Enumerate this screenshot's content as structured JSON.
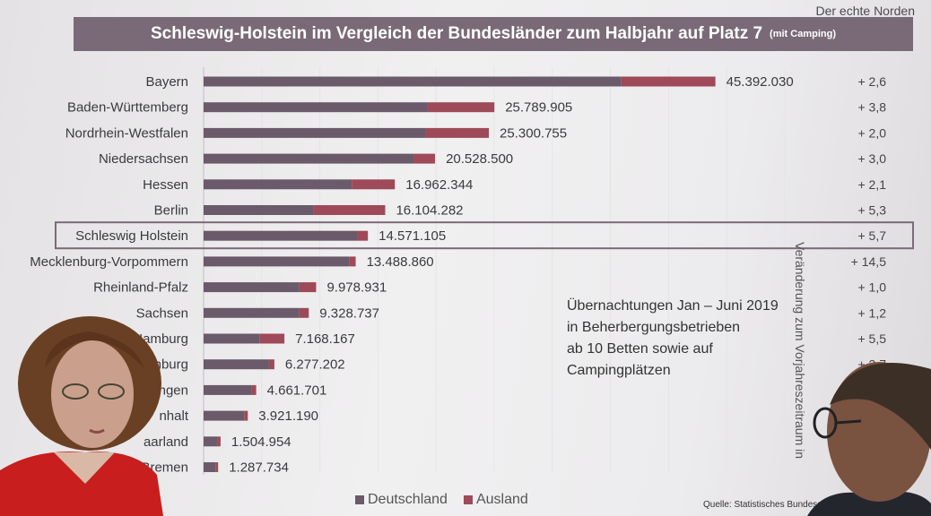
{
  "header": {
    "brand": "Der echte Norden",
    "title": "Schleswig-Holstein im Vergleich der Bundesländer zum Halbjahr auf Platz 7",
    "title_sub": "(mit Camping)"
  },
  "note": "Übernachtungen Jan – Juni 2019\nin Beherbergungsbetrieben\nab 10 Betten sowie auf\nCampingplätzen",
  "legend": [
    "Deutschland",
    "Ausland"
  ],
  "source": "Quelle: Statistisches Bundesam",
  "change_axis_label": "Veränderung zum Vorjahreszeitraum in",
  "colors": {
    "deutschland": "#6b5a6a",
    "ausland": "#9e4a58",
    "title_bg": "#7a6a78"
  },
  "highlight_index": 6,
  "chart_data": {
    "type": "bar",
    "orientation": "horizontal",
    "stacked": true,
    "categories": [
      "Bayern",
      "Baden-Württemberg",
      "Nordrhein-Westfalen",
      "Niedersachsen",
      "Hessen",
      "Berlin",
      "Schleswig Holstein",
      "Mecklenburg-Vorpommern",
      "Rheinland-Pfalz",
      "Sachsen",
      "Hamburg",
      "enburg",
      "ngen",
      "nhalt",
      "aarland",
      "Bremen"
    ],
    "totals": [
      "45.392.030",
      "25.789.905",
      "25.300.755",
      "20.528.500",
      "16.962.344",
      "16.104.282",
      "14.571.105",
      "13.488.860",
      "9.978.931",
      "9.328.737",
      "7.168.167",
      "6.277.202",
      "4.661.701",
      "3.921.190",
      "1.504.954",
      "1.287.734"
    ],
    "series": [
      {
        "name": "Deutschland",
        "values": [
          37050000,
          19850000,
          19650000,
          18650000,
          13150000,
          9750000,
          13640000,
          12950000,
          8500000,
          8500000,
          4950000,
          5800000,
          4250000,
          3600000,
          1200000,
          1050000
        ]
      },
      {
        "name": "Ausland",
        "values": [
          8342030,
          5939905,
          5650755,
          1878500,
          3812344,
          6354282,
          931105,
          538860,
          1478931,
          828737,
          2218167,
          477202,
          411701,
          321190,
          304954,
          237734
        ]
      }
    ],
    "changes": [
      "+ 2,6",
      "+ 3,8",
      "+ 2,0",
      "+ 3,0",
      "+ 2,1",
      "+ 5,3",
      "+ 5,7",
      "+ 14,5",
      "+ 1,0",
      "+ 1,2",
      "+ 5,5",
      "+ 3,7",
      "",
      "",
      "",
      ""
    ],
    "xlim": [
      0,
      50000000
    ],
    "grid": true
  }
}
